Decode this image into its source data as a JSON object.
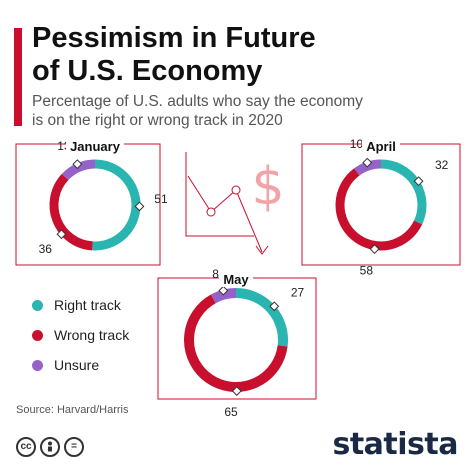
{
  "header": {
    "title_line1": "Pessimism in Future",
    "title_line2": "of U.S. Economy",
    "subtitle_line1": "Percentage of U.S. adults who say the economy",
    "subtitle_line2": "is on the right or wrong track in 2020"
  },
  "colors": {
    "right_track": "#2ab5b1",
    "wrong_track": "#c8102e",
    "unsure": "#9563c7",
    "accent": "#c8102e",
    "panel_border": "#c8102e",
    "dollar": "#f2a3a8"
  },
  "chart_data": [
    {
      "type": "pie",
      "title": "January",
      "categories": [
        "Right track",
        "Wrong track",
        "Unsure"
      ],
      "values": [
        51,
        36,
        13
      ]
    },
    {
      "type": "pie",
      "title": "April",
      "categories": [
        "Right track",
        "Wrong track",
        "Unsure"
      ],
      "values": [
        32,
        58,
        10
      ]
    },
    {
      "type": "pie",
      "title": "May",
      "categories": [
        "Right track",
        "Wrong track",
        "Unsure"
      ],
      "values": [
        27,
        65,
        8
      ]
    }
  ],
  "legend": {
    "items": [
      {
        "label": "Right track"
      },
      {
        "label": "Wrong track"
      },
      {
        "label": "Unsure"
      }
    ]
  },
  "decoration": {
    "dollar_sign": "$"
  },
  "footer": {
    "source": "Source: Harvard/Harris",
    "brand": "statista",
    "license_icons": [
      "cc-icon",
      "person-icon",
      "equals-icon"
    ],
    "cc_glyph": "cc",
    "eq_glyph": "="
  }
}
